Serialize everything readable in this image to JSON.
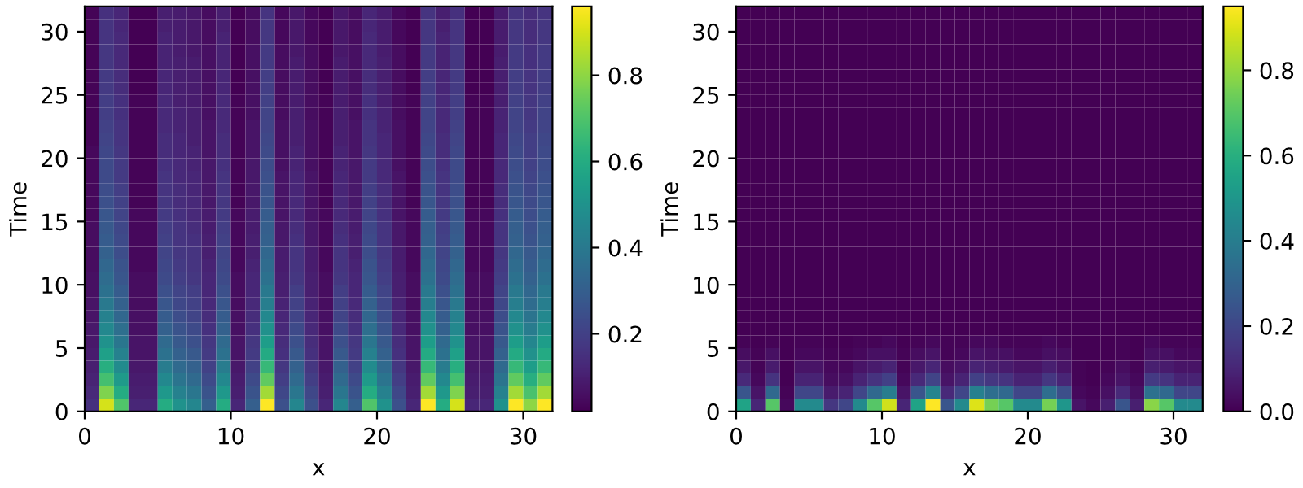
{
  "chart_data": [
    {
      "type": "heatmap",
      "xlabel": "x",
      "ylabel": "Time",
      "xlim": [
        0,
        32
      ],
      "ylim": [
        0,
        32
      ],
      "xticks": [
        0,
        10,
        20,
        30
      ],
      "yticks": [
        0,
        5,
        10,
        15,
        20,
        25,
        30
      ],
      "clim": [
        0.02,
        0.96
      ],
      "cticks": [
        0.2,
        0.4,
        0.6,
        0.8
      ],
      "grid": false,
      "cells": [
        [
          0.03,
          0.15,
          0.12,
          0.02,
          0.02,
          0.1,
          0.09,
          0.08,
          0.05,
          0.1,
          0.02,
          0.05,
          0.16,
          0.04,
          0.08,
          0.04,
          0.02,
          0.08,
          0.05,
          0.12,
          0.09,
          0.04,
          0.02,
          0.16,
          0.1,
          0.15,
          0.02,
          0.02,
          0.09,
          0.16,
          0.14,
          0.16
        ],
        [
          0.03,
          0.16,
          0.12,
          0.02,
          0.02,
          0.1,
          0.09,
          0.08,
          0.05,
          0.1,
          0.02,
          0.05,
          0.17,
          0.04,
          0.08,
          0.04,
          0.02,
          0.08,
          0.05,
          0.12,
          0.09,
          0.04,
          0.02,
          0.17,
          0.1,
          0.16,
          0.02,
          0.02,
          0.09,
          0.17,
          0.14,
          0.17
        ],
        [
          0.03,
          0.16,
          0.13,
          0.02,
          0.02,
          0.11,
          0.09,
          0.08,
          0.05,
          0.11,
          0.02,
          0.05,
          0.17,
          0.04,
          0.08,
          0.04,
          0.02,
          0.08,
          0.05,
          0.13,
          0.09,
          0.04,
          0.02,
          0.17,
          0.11,
          0.16,
          0.02,
          0.02,
          0.09,
          0.17,
          0.14,
          0.17
        ],
        [
          0.03,
          0.17,
          0.13,
          0.02,
          0.02,
          0.11,
          0.09,
          0.08,
          0.06,
          0.11,
          0.02,
          0.06,
          0.18,
          0.05,
          0.08,
          0.05,
          0.02,
          0.08,
          0.06,
          0.13,
          0.09,
          0.05,
          0.02,
          0.18,
          0.11,
          0.17,
          0.02,
          0.02,
          0.09,
          0.18,
          0.15,
          0.18
        ],
        [
          0.03,
          0.17,
          0.13,
          0.02,
          0.02,
          0.11,
          0.1,
          0.09,
          0.06,
          0.11,
          0.02,
          0.06,
          0.18,
          0.05,
          0.09,
          0.05,
          0.02,
          0.09,
          0.06,
          0.13,
          0.1,
          0.05,
          0.02,
          0.18,
          0.11,
          0.17,
          0.02,
          0.02,
          0.1,
          0.18,
          0.15,
          0.18
        ],
        [
          0.03,
          0.18,
          0.14,
          0.02,
          0.02,
          0.12,
          0.1,
          0.09,
          0.06,
          0.12,
          0.02,
          0.06,
          0.19,
          0.05,
          0.09,
          0.05,
          0.02,
          0.09,
          0.06,
          0.14,
          0.1,
          0.05,
          0.02,
          0.19,
          0.12,
          0.18,
          0.02,
          0.02,
          0.1,
          0.19,
          0.16,
          0.19
        ],
        [
          0.03,
          0.18,
          0.14,
          0.02,
          0.02,
          0.12,
          0.1,
          0.09,
          0.06,
          0.12,
          0.02,
          0.06,
          0.19,
          0.05,
          0.09,
          0.05,
          0.02,
          0.09,
          0.06,
          0.14,
          0.1,
          0.05,
          0.02,
          0.19,
          0.12,
          0.18,
          0.02,
          0.02,
          0.1,
          0.19,
          0.16,
          0.19
        ],
        [
          0.03,
          0.19,
          0.15,
          0.03,
          0.03,
          0.13,
          0.1,
          0.09,
          0.06,
          0.13,
          0.03,
          0.06,
          0.2,
          0.05,
          0.09,
          0.05,
          0.03,
          0.09,
          0.06,
          0.15,
          0.1,
          0.05,
          0.03,
          0.2,
          0.13,
          0.19,
          0.03,
          0.03,
          0.1,
          0.2,
          0.17,
          0.2
        ],
        [
          0.03,
          0.19,
          0.15,
          0.03,
          0.03,
          0.13,
          0.11,
          0.1,
          0.06,
          0.13,
          0.03,
          0.06,
          0.21,
          0.05,
          0.1,
          0.05,
          0.03,
          0.1,
          0.06,
          0.15,
          0.11,
          0.05,
          0.03,
          0.21,
          0.13,
          0.19,
          0.03,
          0.03,
          0.11,
          0.21,
          0.17,
          0.21
        ],
        [
          0.03,
          0.2,
          0.16,
          0.03,
          0.03,
          0.13,
          0.11,
          0.1,
          0.07,
          0.13,
          0.03,
          0.07,
          0.21,
          0.06,
          0.1,
          0.06,
          0.03,
          0.1,
          0.07,
          0.16,
          0.11,
          0.06,
          0.03,
          0.21,
          0.13,
          0.2,
          0.03,
          0.03,
          0.11,
          0.21,
          0.18,
          0.21
        ],
        [
          0.03,
          0.21,
          0.16,
          0.03,
          0.03,
          0.14,
          0.12,
          0.1,
          0.07,
          0.14,
          0.03,
          0.07,
          0.22,
          0.06,
          0.1,
          0.06,
          0.03,
          0.1,
          0.07,
          0.16,
          0.12,
          0.06,
          0.03,
          0.22,
          0.14,
          0.21,
          0.03,
          0.03,
          0.12,
          0.22,
          0.19,
          0.22
        ],
        [
          0.04,
          0.22,
          0.17,
          0.03,
          0.03,
          0.14,
          0.12,
          0.11,
          0.07,
          0.14,
          0.03,
          0.07,
          0.23,
          0.06,
          0.11,
          0.06,
          0.03,
          0.11,
          0.07,
          0.17,
          0.12,
          0.06,
          0.03,
          0.23,
          0.14,
          0.22,
          0.03,
          0.03,
          0.12,
          0.23,
          0.19,
          0.23
        ],
        [
          0.04,
          0.23,
          0.18,
          0.03,
          0.03,
          0.15,
          0.13,
          0.11,
          0.08,
          0.15,
          0.03,
          0.08,
          0.24,
          0.06,
          0.11,
          0.06,
          0.03,
          0.11,
          0.08,
          0.18,
          0.13,
          0.06,
          0.03,
          0.24,
          0.15,
          0.23,
          0.03,
          0.03,
          0.13,
          0.24,
          0.2,
          0.24
        ],
        [
          0.04,
          0.23,
          0.18,
          0.03,
          0.03,
          0.16,
          0.13,
          0.12,
          0.08,
          0.16,
          0.03,
          0.08,
          0.25,
          0.07,
          0.12,
          0.07,
          0.03,
          0.12,
          0.08,
          0.18,
          0.13,
          0.07,
          0.03,
          0.25,
          0.16,
          0.23,
          0.03,
          0.03,
          0.13,
          0.25,
          0.21,
          0.25
        ],
        [
          0.04,
          0.24,
          0.19,
          0.03,
          0.03,
          0.16,
          0.14,
          0.12,
          0.08,
          0.16,
          0.03,
          0.08,
          0.26,
          0.07,
          0.12,
          0.07,
          0.03,
          0.12,
          0.08,
          0.19,
          0.14,
          0.07,
          0.03,
          0.26,
          0.16,
          0.24,
          0.03,
          0.03,
          0.14,
          0.26,
          0.22,
          0.26
        ],
        [
          0.04,
          0.25,
          0.2,
          0.03,
          0.03,
          0.17,
          0.14,
          0.13,
          0.08,
          0.17,
          0.03,
          0.08,
          0.27,
          0.07,
          0.13,
          0.07,
          0.03,
          0.13,
          0.08,
          0.2,
          0.14,
          0.07,
          0.03,
          0.27,
          0.17,
          0.25,
          0.03,
          0.03,
          0.14,
          0.27,
          0.23,
          0.27
        ],
        [
          0.04,
          0.27,
          0.21,
          0.04,
          0.04,
          0.18,
          0.15,
          0.13,
          0.09,
          0.18,
          0.04,
          0.09,
          0.29,
          0.07,
          0.13,
          0.07,
          0.04,
          0.13,
          0.09,
          0.21,
          0.15,
          0.07,
          0.04,
          0.29,
          0.18,
          0.27,
          0.04,
          0.04,
          0.15,
          0.29,
          0.24,
          0.29
        ],
        [
          0.05,
          0.28,
          0.22,
          0.04,
          0.04,
          0.19,
          0.16,
          0.14,
          0.09,
          0.19,
          0.04,
          0.09,
          0.3,
          0.08,
          0.14,
          0.08,
          0.04,
          0.14,
          0.09,
          0.22,
          0.16,
          0.08,
          0.04,
          0.3,
          0.19,
          0.28,
          0.04,
          0.04,
          0.16,
          0.3,
          0.25,
          0.3
        ],
        [
          0.05,
          0.29,
          0.23,
          0.04,
          0.04,
          0.2,
          0.16,
          0.15,
          0.1,
          0.2,
          0.04,
          0.1,
          0.31,
          0.08,
          0.15,
          0.08,
          0.04,
          0.15,
          0.1,
          0.23,
          0.16,
          0.08,
          0.04,
          0.31,
          0.2,
          0.29,
          0.04,
          0.04,
          0.16,
          0.31,
          0.26,
          0.31
        ],
        [
          0.05,
          0.31,
          0.24,
          0.04,
          0.04,
          0.21,
          0.17,
          0.16,
          0.1,
          0.21,
          0.04,
          0.1,
          0.33,
          0.09,
          0.16,
          0.09,
          0.04,
          0.16,
          0.1,
          0.24,
          0.17,
          0.09,
          0.04,
          0.33,
          0.21,
          0.31,
          0.04,
          0.04,
          0.17,
          0.33,
          0.28,
          0.33
        ],
        [
          0.05,
          0.33,
          0.26,
          0.04,
          0.04,
          0.22,
          0.18,
          0.16,
          0.11,
          0.22,
          0.04,
          0.11,
          0.35,
          0.09,
          0.16,
          0.09,
          0.04,
          0.16,
          0.11,
          0.26,
          0.18,
          0.09,
          0.04,
          0.35,
          0.22,
          0.33,
          0.04,
          0.04,
          0.18,
          0.35,
          0.29,
          0.35
        ],
        [
          0.06,
          0.35,
          0.27,
          0.05,
          0.05,
          0.23,
          0.19,
          0.17,
          0.12,
          0.23,
          0.05,
          0.12,
          0.37,
          0.1,
          0.17,
          0.1,
          0.05,
          0.17,
          0.12,
          0.27,
          0.19,
          0.1,
          0.05,
          0.37,
          0.23,
          0.35,
          0.05,
          0.05,
          0.19,
          0.37,
          0.31,
          0.37
        ],
        [
          0.06,
          0.37,
          0.29,
          0.05,
          0.05,
          0.25,
          0.21,
          0.19,
          0.12,
          0.25,
          0.05,
          0.12,
          0.4,
          0.1,
          0.19,
          0.1,
          0.05,
          0.19,
          0.12,
          0.29,
          0.21,
          0.1,
          0.05,
          0.4,
          0.25,
          0.37,
          0.05,
          0.05,
          0.21,
          0.4,
          0.33,
          0.4
        ],
        [
          0.07,
          0.4,
          0.31,
          0.05,
          0.05,
          0.27,
          0.22,
          0.2,
          0.13,
          0.27,
          0.05,
          0.13,
          0.42,
          0.11,
          0.2,
          0.11,
          0.05,
          0.2,
          0.13,
          0.31,
          0.22,
          0.11,
          0.05,
          0.42,
          0.27,
          0.4,
          0.05,
          0.05,
          0.22,
          0.42,
          0.35,
          0.42
        ],
        [
          0.07,
          0.43,
          0.33,
          0.06,
          0.06,
          0.29,
          0.24,
          0.21,
          0.14,
          0.29,
          0.06,
          0.14,
          0.46,
          0.12,
          0.21,
          0.12,
          0.06,
          0.21,
          0.14,
          0.33,
          0.24,
          0.12,
          0.06,
          0.46,
          0.29,
          0.43,
          0.06,
          0.06,
          0.24,
          0.46,
          0.38,
          0.46
        ],
        [
          0.08,
          0.46,
          0.36,
          0.06,
          0.06,
          0.31,
          0.26,
          0.23,
          0.15,
          0.31,
          0.06,
          0.15,
          0.49,
          0.13,
          0.23,
          0.13,
          0.06,
          0.23,
          0.15,
          0.36,
          0.26,
          0.13,
          0.06,
          0.49,
          0.31,
          0.46,
          0.06,
          0.06,
          0.26,
          0.49,
          0.41,
          0.49
        ],
        [
          0.08,
          0.5,
          0.39,
          0.07,
          0.07,
          0.34,
          0.28,
          0.25,
          0.17,
          0.34,
          0.07,
          0.17,
          0.54,
          0.14,
          0.25,
          0.14,
          0.07,
          0.25,
          0.17,
          0.39,
          0.28,
          0.14,
          0.07,
          0.54,
          0.34,
          0.5,
          0.07,
          0.07,
          0.28,
          0.54,
          0.45,
          0.54
        ],
        [
          0.09,
          0.55,
          0.43,
          0.07,
          0.07,
          0.37,
          0.31,
          0.28,
          0.18,
          0.37,
          0.07,
          0.18,
          0.59,
          0.15,
          0.28,
          0.15,
          0.07,
          0.28,
          0.18,
          0.43,
          0.31,
          0.15,
          0.07,
          0.59,
          0.37,
          0.55,
          0.07,
          0.07,
          0.31,
          0.59,
          0.49,
          0.59
        ],
        [
          0.1,
          0.61,
          0.47,
          0.08,
          0.08,
          0.41,
          0.34,
          0.31,
          0.2,
          0.41,
          0.08,
          0.2,
          0.65,
          0.17,
          0.31,
          0.17,
          0.08,
          0.31,
          0.2,
          0.47,
          0.34,
          0.17,
          0.08,
          0.65,
          0.41,
          0.61,
          0.08,
          0.08,
          0.34,
          0.65,
          0.54,
          0.65
        ],
        [
          0.11,
          0.68,
          0.53,
          0.09,
          0.09,
          0.46,
          0.38,
          0.34,
          0.23,
          0.46,
          0.09,
          0.23,
          0.73,
          0.19,
          0.34,
          0.19,
          0.09,
          0.34,
          0.23,
          0.53,
          0.38,
          0.19,
          0.09,
          0.73,
          0.46,
          0.68,
          0.09,
          0.09,
          0.38,
          0.73,
          0.61,
          0.73
        ],
        [
          0.13,
          0.78,
          0.6,
          0.1,
          0.1,
          0.52,
          0.43,
          0.39,
          0.26,
          0.52,
          0.1,
          0.26,
          0.83,
          0.22,
          0.39,
          0.22,
          0.1,
          0.39,
          0.26,
          0.6,
          0.43,
          0.22,
          0.1,
          0.83,
          0.52,
          0.78,
          0.1,
          0.1,
          0.43,
          0.83,
          0.69,
          0.83
        ],
        [
          0.15,
          0.9,
          0.7,
          0.12,
          0.12,
          0.6,
          0.5,
          0.45,
          0.3,
          0.6,
          0.12,
          0.3,
          0.96,
          0.25,
          0.45,
          0.25,
          0.12,
          0.45,
          0.3,
          0.7,
          0.5,
          0.25,
          0.12,
          0.96,
          0.6,
          0.9,
          0.12,
          0.12,
          0.5,
          0.96,
          0.8,
          0.96
        ]
      ]
    },
    {
      "type": "heatmap",
      "xlabel": "x",
      "ylabel": "Time",
      "xlim": [
        0,
        32
      ],
      "ylim": [
        0,
        32
      ],
      "xticks": [
        0,
        10,
        20,
        30
      ],
      "yticks": [
        0,
        5,
        10,
        15,
        20,
        25,
        30
      ],
      "clim": [
        0.0,
        0.95
      ],
      "cticks": [
        {
          "value": 0,
          "label": "0.0"
        },
        0.2,
        0.4,
        0.6,
        0.8
      ],
      "grid": false,
      "cells": [
        [
          0,
          0,
          0,
          0,
          0,
          0,
          0,
          0,
          0,
          0,
          0,
          0,
          0,
          0,
          0,
          0,
          0,
          0,
          0,
          0,
          0,
          0,
          0,
          0,
          0,
          0,
          0,
          0,
          0,
          0,
          0,
          0
        ],
        [
          0,
          0,
          0,
          0,
          0,
          0,
          0,
          0,
          0,
          0,
          0,
          0,
          0,
          0,
          0,
          0,
          0,
          0,
          0,
          0,
          0,
          0,
          0,
          0,
          0,
          0,
          0,
          0,
          0,
          0,
          0,
          0
        ],
        [
          0,
          0,
          0,
          0,
          0,
          0,
          0,
          0,
          0,
          0,
          0,
          0,
          0,
          0,
          0,
          0,
          0,
          0,
          0,
          0,
          0,
          0,
          0,
          0,
          0,
          0,
          0,
          0,
          0,
          0,
          0,
          0
        ],
        [
          0,
          0,
          0,
          0,
          0,
          0,
          0,
          0,
          0,
          0,
          0,
          0,
          0,
          0,
          0,
          0,
          0,
          0,
          0,
          0,
          0,
          0,
          0,
          0,
          0,
          0,
          0,
          0,
          0,
          0,
          0,
          0
        ],
        [
          0,
          0,
          0,
          0,
          0,
          0,
          0,
          0,
          0,
          0,
          0,
          0,
          0,
          0,
          0,
          0,
          0,
          0,
          0,
          0,
          0,
          0,
          0,
          0,
          0,
          0,
          0,
          0,
          0,
          0,
          0,
          0
        ],
        [
          0,
          0,
          0,
          0,
          0,
          0,
          0,
          0,
          0,
          0,
          0,
          0,
          0,
          0,
          0,
          0,
          0,
          0,
          0,
          0,
          0,
          0,
          0,
          0,
          0,
          0,
          0,
          0,
          0,
          0,
          0,
          0
        ],
        [
          0,
          0,
          0,
          0,
          0,
          0,
          0,
          0,
          0,
          0,
          0,
          0,
          0,
          0,
          0,
          0,
          0,
          0,
          0,
          0,
          0,
          0,
          0,
          0,
          0,
          0,
          0,
          0,
          0,
          0,
          0,
          0
        ],
        [
          0,
          0,
          0,
          0,
          0,
          0,
          0,
          0,
          0,
          0,
          0,
          0,
          0,
          0,
          0,
          0,
          0,
          0,
          0,
          0,
          0,
          0,
          0,
          0,
          0,
          0,
          0,
          0,
          0,
          0,
          0,
          0
        ],
        [
          0,
          0,
          0,
          0,
          0,
          0,
          0,
          0,
          0,
          0,
          0,
          0,
          0,
          0,
          0,
          0,
          0,
          0,
          0,
          0,
          0,
          0,
          0,
          0,
          0,
          0,
          0,
          0,
          0,
          0,
          0,
          0
        ],
        [
          0,
          0,
          0,
          0,
          0,
          0,
          0,
          0,
          0,
          0,
          0,
          0,
          0,
          0,
          0,
          0,
          0,
          0,
          0,
          0,
          0,
          0,
          0,
          0,
          0,
          0,
          0,
          0,
          0,
          0,
          0,
          0
        ],
        [
          0,
          0,
          0,
          0,
          0,
          0,
          0,
          0,
          0,
          0,
          0,
          0,
          0,
          0,
          0,
          0,
          0,
          0,
          0,
          0,
          0,
          0,
          0,
          0,
          0,
          0,
          0,
          0,
          0,
          0,
          0,
          0
        ],
        [
          0,
          0,
          0,
          0,
          0,
          0,
          0,
          0,
          0,
          0,
          0,
          0,
          0,
          0,
          0,
          0,
          0,
          0,
          0,
          0,
          0,
          0,
          0,
          0,
          0,
          0,
          0,
          0,
          0,
          0,
          0,
          0
        ],
        [
          0,
          0,
          0,
          0,
          0,
          0,
          0,
          0,
          0,
          0,
          0,
          0,
          0,
          0,
          0,
          0,
          0,
          0,
          0,
          0,
          0,
          0,
          0,
          0,
          0,
          0,
          0,
          0,
          0,
          0,
          0,
          0
        ],
        [
          0,
          0,
          0,
          0,
          0,
          0,
          0,
          0,
          0,
          0,
          0,
          0,
          0,
          0,
          0,
          0,
          0,
          0,
          0,
          0,
          0,
          0,
          0,
          0,
          0,
          0,
          0,
          0,
          0,
          0,
          0,
          0
        ],
        [
          0,
          0,
          0,
          0,
          0,
          0,
          0,
          0,
          0,
          0,
          0,
          0,
          0,
          0,
          0,
          0,
          0,
          0,
          0,
          0,
          0,
          0,
          0,
          0,
          0,
          0,
          0,
          0,
          0,
          0,
          0,
          0
        ],
        [
          0,
          0,
          0,
          0,
          0,
          0,
          0,
          0,
          0,
          0,
          0,
          0,
          0,
          0,
          0,
          0,
          0,
          0,
          0,
          0,
          0,
          0,
          0,
          0,
          0,
          0,
          0,
          0,
          0,
          0,
          0,
          0
        ],
        [
          0,
          0,
          0,
          0,
          0,
          0,
          0,
          0,
          0,
          0,
          0,
          0,
          0,
          0,
          0,
          0,
          0,
          0,
          0,
          0,
          0,
          0,
          0,
          0,
          0,
          0,
          0,
          0,
          0,
          0,
          0,
          0
        ],
        [
          0,
          0,
          0,
          0,
          0,
          0,
          0,
          0,
          0,
          0,
          0,
          0,
          0,
          0,
          0,
          0,
          0,
          0,
          0,
          0,
          0,
          0,
          0,
          0,
          0,
          0,
          0,
          0,
          0,
          0,
          0,
          0
        ],
        [
          0,
          0,
          0,
          0,
          0,
          0,
          0,
          0,
          0,
          0,
          0,
          0,
          0,
          0,
          0,
          0,
          0,
          0,
          0,
          0,
          0,
          0,
          0,
          0,
          0,
          0,
          0,
          0,
          0,
          0,
          0,
          0
        ],
        [
          0,
          0,
          0,
          0,
          0,
          0,
          0,
          0,
          0,
          0,
          0,
          0,
          0,
          0,
          0,
          0,
          0,
          0,
          0,
          0,
          0,
          0,
          0,
          0,
          0,
          0,
          0,
          0,
          0,
          0,
          0,
          0
        ],
        [
          0,
          0,
          0,
          0,
          0,
          0,
          0,
          0,
          0,
          0,
          0,
          0,
          0,
          0,
          0,
          0,
          0,
          0,
          0,
          0,
          0,
          0,
          0,
          0,
          0,
          0,
          0,
          0,
          0,
          0,
          0,
          0
        ],
        [
          0,
          0,
          0,
          0,
          0,
          0,
          0,
          0,
          0,
          0,
          0,
          0,
          0,
          0,
          0,
          0,
          0,
          0,
          0,
          0,
          0,
          0,
          0,
          0,
          0,
          0,
          0,
          0,
          0,
          0,
          0,
          0
        ],
        [
          0,
          0,
          0,
          0,
          0,
          0,
          0,
          0,
          0,
          0,
          0,
          0,
          0,
          0,
          0,
          0,
          0,
          0,
          0,
          0,
          0,
          0,
          0,
          0,
          0,
          0,
          0,
          0,
          0,
          0,
          0,
          0
        ],
        [
          0,
          0,
          0,
          0,
          0,
          0,
          0,
          0,
          0,
          0,
          0,
          0,
          0,
          0,
          0,
          0,
          0,
          0,
          0,
          0,
          0,
          0,
          0,
          0,
          0,
          0,
          0,
          0,
          0,
          0,
          0,
          0
        ],
        [
          0,
          0,
          0,
          0,
          0,
          0,
          0,
          0,
          0,
          0,
          0,
          0,
          0,
          0,
          0,
          0,
          0,
          0,
          0,
          0,
          0,
          0,
          0,
          0,
          0,
          0,
          0,
          0,
          0,
          0,
          0,
          0
        ],
        [
          0,
          0,
          0,
          0,
          0,
          0,
          0,
          0,
          0,
          0,
          0,
          0,
          0,
          0,
          0,
          0,
          0,
          0,
          0,
          0,
          0,
          0,
          0,
          0,
          0,
          0,
          0,
          0,
          0,
          0,
          0,
          0
        ],
        [
          0.01,
          0,
          0.01,
          0,
          0.01,
          0.01,
          0,
          0,
          0.01,
          0.01,
          0.02,
          0,
          0.01,
          0.02,
          0.01,
          0.01,
          0.02,
          0.02,
          0.01,
          0.01,
          0.01,
          0.02,
          0.01,
          0,
          0,
          0,
          0.01,
          0,
          0.02,
          0.01,
          0.01,
          0.01
        ],
        [
          0.03,
          0.01,
          0.04,
          0,
          0.02,
          0.02,
          0.01,
          0.01,
          0.02,
          0.04,
          0.04,
          0.01,
          0.03,
          0.05,
          0.01,
          0.02,
          0.05,
          0.04,
          0.04,
          0.02,
          0.02,
          0.04,
          0.03,
          0,
          0,
          0,
          0.01,
          0,
          0.04,
          0.04,
          0.02,
          0.02
        ],
        [
          0.06,
          0.01,
          0.07,
          0,
          0.05,
          0.05,
          0.02,
          0.02,
          0.05,
          0.07,
          0.09,
          0.01,
          0.06,
          0.1,
          0.03,
          0.05,
          0.09,
          0.08,
          0.07,
          0.05,
          0.05,
          0.08,
          0.05,
          0.01,
          0,
          0.01,
          0.03,
          0.01,
          0.08,
          0.07,
          0.05,
          0.05
        ],
        [
          0.11,
          0.02,
          0.14,
          0,
          0.09,
          0.09,
          0.03,
          0.04,
          0.09,
          0.14,
          0.18,
          0.02,
          0.11,
          0.19,
          0.05,
          0.09,
          0.18,
          0.15,
          0.14,
          0.09,
          0.09,
          0.15,
          0.1,
          0.01,
          0,
          0.02,
          0.05,
          0.02,
          0.16,
          0.14,
          0.09,
          0.09
        ],
        [
          0.25,
          0.05,
          0.32,
          0.01,
          0.2,
          0.2,
          0.07,
          0.09,
          0.2,
          0.32,
          0.4,
          0.05,
          0.25,
          0.43,
          0.11,
          0.2,
          0.41,
          0.34,
          0.32,
          0.2,
          0.2,
          0.34,
          0.23,
          0.02,
          0.01,
          0.04,
          0.11,
          0.04,
          0.35,
          0.32,
          0.2,
          0.2
        ],
        [
          0.55,
          0.1,
          0.7,
          0.02,
          0.45,
          0.45,
          0.15,
          0.2,
          0.45,
          0.7,
          0.88,
          0.1,
          0.55,
          0.95,
          0.25,
          0.45,
          0.9,
          0.75,
          0.7,
          0.45,
          0.45,
          0.75,
          0.5,
          0.05,
          0.02,
          0.08,
          0.25,
          0.08,
          0.78,
          0.7,
          0.45,
          0.45
        ]
      ]
    }
  ]
}
